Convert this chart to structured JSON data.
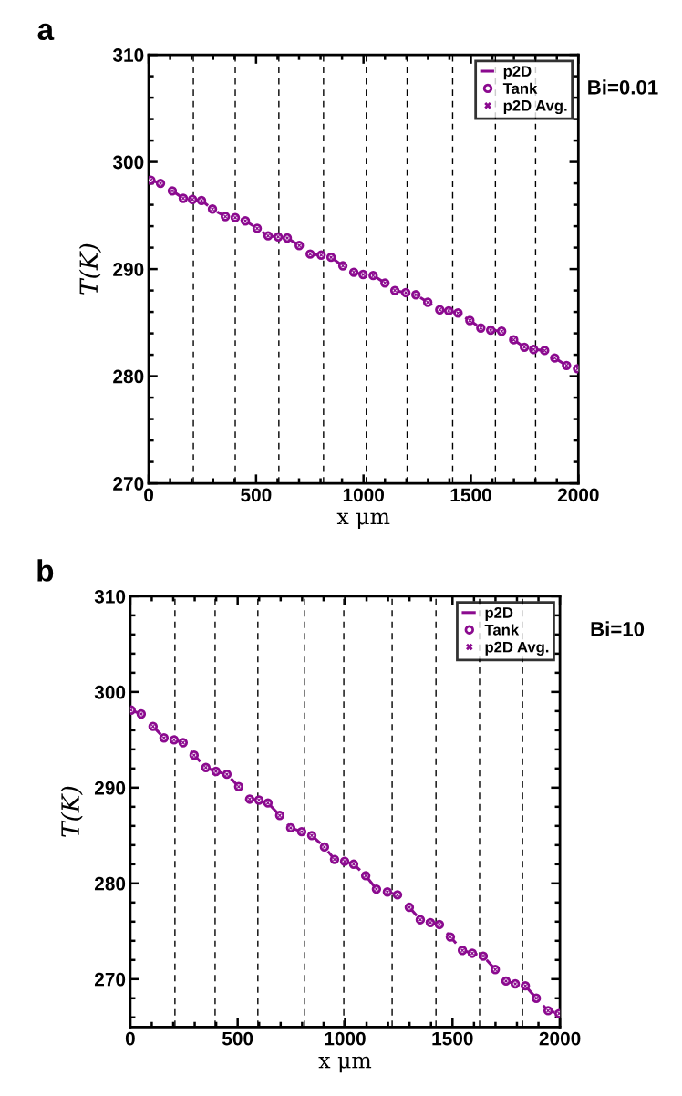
{
  "chart_data": [
    {
      "type": "line",
      "xlabel": "x μm",
      "ylabel": "T(K)",
      "annotations": [
        "a",
        "Bi=0.01"
      ],
      "x": [
        10,
        55,
        110,
        161,
        204,
        246,
        297,
        357,
        403,
        450,
        505,
        556,
        603,
        645,
        701,
        752,
        803,
        849,
        904,
        955,
        998,
        1045,
        1100,
        1146,
        1197,
        1244,
        1299,
        1355,
        1397,
        1440,
        1495,
        1546,
        1592,
        1643,
        1699,
        1749,
        1792,
        1843,
        1890,
        1945,
        1996
      ],
      "series": [
        {
          "name": "p2D",
          "type": "line",
          "line_style": "dashed",
          "color": "#8b0a8f",
          "values": [
            298.3,
            298.0,
            297.3,
            296.6,
            296.5,
            296.4,
            295.6,
            294.9,
            294.8,
            294.5,
            293.8,
            293.1,
            293.0,
            292.9,
            292.2,
            291.4,
            291.3,
            291.1,
            290.3,
            289.7,
            289.5,
            289.4,
            288.7,
            288.0,
            287.8,
            287.6,
            286.9,
            286.2,
            286.1,
            285.9,
            285.2,
            284.5,
            284.3,
            284.2,
            283.4,
            282.7,
            282.5,
            282.4,
            281.7,
            281.0,
            280.7
          ]
        },
        {
          "name": "Tank",
          "type": "scatter",
          "marker": "circle",
          "color": "#8b0a8f",
          "values": [
            298.3,
            298.0,
            297.3,
            296.6,
            296.5,
            296.4,
            295.6,
            294.9,
            294.8,
            294.5,
            293.8,
            293.1,
            293.0,
            292.9,
            292.2,
            291.4,
            291.3,
            291.1,
            290.3,
            289.7,
            289.5,
            289.4,
            288.7,
            288.0,
            287.8,
            287.6,
            286.9,
            286.2,
            286.1,
            285.9,
            285.2,
            284.5,
            284.3,
            284.2,
            283.4,
            282.7,
            282.5,
            282.4,
            281.7,
            281.0,
            280.7
          ]
        },
        {
          "name": "p2D Avg.",
          "type": "scatter",
          "marker": "cross",
          "color": "#8b0a8f",
          "values": [
            298.3,
            298.0,
            297.3,
            296.6,
            296.5,
            296.4,
            295.6,
            294.9,
            294.8,
            294.5,
            293.8,
            293.1,
            293.0,
            292.9,
            292.2,
            291.4,
            291.3,
            291.1,
            290.3,
            289.7,
            289.5,
            289.4,
            288.7,
            288.0,
            287.8,
            287.6,
            286.9,
            286.2,
            286.1,
            285.9,
            285.2,
            284.5,
            284.3,
            284.2,
            283.4,
            282.7,
            282.5,
            282.4,
            281.7,
            281.0,
            280.7
          ]
        }
      ],
      "xlim": [
        0,
        2000
      ],
      "xticks": [
        0,
        500,
        1000,
        1500,
        2000
      ],
      "ylim": [
        270,
        310
      ],
      "yticks": [
        270,
        280,
        290,
        300,
        310
      ],
      "ref_lines": [
        {
          "axis": "x",
          "value": 208,
          "line_style": "dashed",
          "color": "#000000"
        },
        {
          "axis": "x",
          "value": 403,
          "line_style": "dashed",
          "color": "#000000"
        },
        {
          "axis": "x",
          "value": 606,
          "line_style": "dashed",
          "color": "#000000"
        },
        {
          "axis": "x",
          "value": 814,
          "line_style": "dashed",
          "color": "#000000"
        },
        {
          "axis": "x",
          "value": 1013,
          "line_style": "dashed",
          "color": "#000000"
        },
        {
          "axis": "x",
          "value": 1203,
          "line_style": "dashed",
          "color": "#000000"
        },
        {
          "axis": "x",
          "value": 1415,
          "line_style": "dashed",
          "color": "#000000"
        },
        {
          "axis": "x",
          "value": 1614,
          "line_style": "dashed",
          "color": "#000000"
        },
        {
          "axis": "x",
          "value": 1801,
          "line_style": "dashed",
          "color": "#000000"
        }
      ],
      "legend": "top right"
    },
    {
      "type": "line",
      "xlabel": "x μm",
      "ylabel": "T(K)",
      "annotations": [
        "b",
        "Bi=10"
      ],
      "x": [
        4,
        51,
        106,
        157,
        204,
        246,
        297,
        352,
        399,
        450,
        505,
        556,
        599,
        641,
        696,
        747,
        798,
        845,
        904,
        951,
        998,
        1040,
        1096,
        1146,
        1197,
        1244,
        1299,
        1350,
        1397,
        1439,
        1490,
        1546,
        1592,
        1643,
        1699,
        1749,
        1792,
        1839,
        1890,
        1945,
        1996
      ],
      "series": [
        {
          "name": "p2D",
          "type": "line",
          "line_style": "dashed",
          "color": "#8b0a8f",
          "values": [
            298.1,
            297.7,
            296.4,
            295.2,
            295.0,
            294.7,
            293.4,
            292.1,
            291.7,
            291.4,
            290.1,
            288.8,
            288.7,
            288.4,
            287.1,
            285.8,
            285.4,
            285.0,
            283.8,
            282.5,
            282.3,
            282.0,
            280.8,
            279.4,
            279.1,
            278.8,
            277.5,
            276.2,
            275.9,
            275.7,
            274.4,
            273.0,
            272.7,
            272.4,
            271.0,
            269.8,
            269.5,
            269.3,
            268.0,
            266.7,
            266.4
          ]
        },
        {
          "name": "Tank",
          "type": "scatter",
          "marker": "circle",
          "color": "#8b0a8f",
          "values": [
            298.1,
            297.7,
            296.4,
            295.2,
            295.0,
            294.7,
            293.4,
            292.1,
            291.7,
            291.4,
            290.1,
            288.8,
            288.7,
            288.4,
            287.1,
            285.8,
            285.4,
            285.0,
            283.8,
            282.5,
            282.3,
            282.0,
            280.8,
            279.4,
            279.1,
            278.8,
            277.5,
            276.2,
            275.9,
            275.7,
            274.4,
            273.0,
            272.7,
            272.4,
            271.0,
            269.8,
            269.5,
            269.3,
            268.0,
            266.7,
            266.4
          ]
        },
        {
          "name": "p2D Avg.",
          "type": "scatter",
          "marker": "cross",
          "color": "#8b0a8f",
          "values": [
            298.1,
            297.7,
            296.4,
            295.2,
            295.0,
            294.7,
            293.4,
            292.1,
            291.7,
            291.4,
            290.1,
            288.8,
            288.7,
            288.4,
            287.1,
            285.8,
            285.4,
            285.0,
            283.8,
            282.5,
            282.3,
            282.0,
            280.8,
            279.4,
            279.1,
            278.8,
            277.5,
            276.2,
            275.9,
            275.7,
            274.4,
            273.0,
            272.7,
            272.4,
            271.0,
            269.8,
            269.5,
            269.3,
            268.0,
            266.7,
            266.4
          ]
        }
      ],
      "xlim": [
        0,
        2000
      ],
      "xticks": [
        0,
        500,
        1000,
        1500,
        2000
      ],
      "ylim": [
        265,
        310
      ],
      "yticks": [
        270,
        280,
        290,
        300,
        310
      ],
      "ref_lines": [
        {
          "axis": "x",
          "value": 208,
          "line_style": "dashed",
          "color": "#000000"
        },
        {
          "axis": "x",
          "value": 395,
          "line_style": "dashed",
          "color": "#000000"
        },
        {
          "axis": "x",
          "value": 594,
          "line_style": "dashed",
          "color": "#000000"
        },
        {
          "axis": "x",
          "value": 812,
          "line_style": "dashed",
          "color": "#000000"
        },
        {
          "axis": "x",
          "value": 994,
          "line_style": "dashed",
          "color": "#000000"
        },
        {
          "axis": "x",
          "value": 1219,
          "line_style": "dashed",
          "color": "#000000"
        },
        {
          "axis": "x",
          "value": 1423,
          "line_style": "dashed",
          "color": "#000000"
        },
        {
          "axis": "x",
          "value": 1626,
          "line_style": "dashed",
          "color": "#000000"
        },
        {
          "axis": "x",
          "value": 1826,
          "line_style": "dashed",
          "color": "#000000"
        }
      ],
      "legend": "top right"
    }
  ]
}
